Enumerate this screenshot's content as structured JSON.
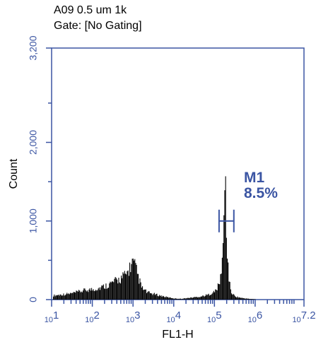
{
  "chart_data": {
    "type": "histogram",
    "title_lines": [
      "A09 0.5 um 1k",
      "Gate: [No Gating]"
    ],
    "xlabel": "FL1-H",
    "ylabel": "Count",
    "x_scale": "log",
    "xlim": [
      10,
      15848931.92
    ],
    "ylim": [
      0,
      3200
    ],
    "x_ticks": [
      {
        "base": "10",
        "exp": "1"
      },
      {
        "base": "10",
        "exp": "2"
      },
      {
        "base": "10",
        "exp": "3"
      },
      {
        "base": "10",
        "exp": "4"
      },
      {
        "base": "10",
        "exp": "5"
      },
      {
        "base": "10",
        "exp": "6"
      },
      {
        "base": "10",
        "exp": "7.2"
      }
    ],
    "y_ticks": [
      "0",
      "1,000",
      "2,000",
      "3,200"
    ],
    "y_tick_values": [
      0,
      1000,
      2000,
      3200
    ],
    "series": [
      {
        "color": "#000000",
        "x": [
          10,
          15,
          22,
          32,
          46,
          68,
          100,
          150,
          220,
          320,
          460,
          680,
          800,
          950,
          1100,
          1300,
          1600,
          2200,
          3200,
          4600,
          6800,
          10000,
          15000,
          22000,
          32000,
          46000,
          68000,
          100000,
          115000,
          130000,
          140000,
          150000,
          160000,
          170000,
          180000,
          200000,
          230000,
          260000,
          320000,
          460000,
          680000,
          1000000
        ],
        "y": [
          50,
          60,
          70,
          80,
          100,
          120,
          130,
          150,
          180,
          220,
          260,
          320,
          400,
          470,
          420,
          300,
          150,
          90,
          70,
          50,
          30,
          15,
          10,
          20,
          30,
          40,
          60,
          100,
          150,
          200,
          300,
          500,
          700,
          1000,
          1720,
          600,
          200,
          80,
          40,
          20,
          10,
          5
        ]
      }
    ],
    "marker": {
      "name": "M1",
      "percent": "8.5%",
      "x_start": 130000,
      "x_end": 300000,
      "y": 1000,
      "color": "#3b55a3"
    }
  }
}
